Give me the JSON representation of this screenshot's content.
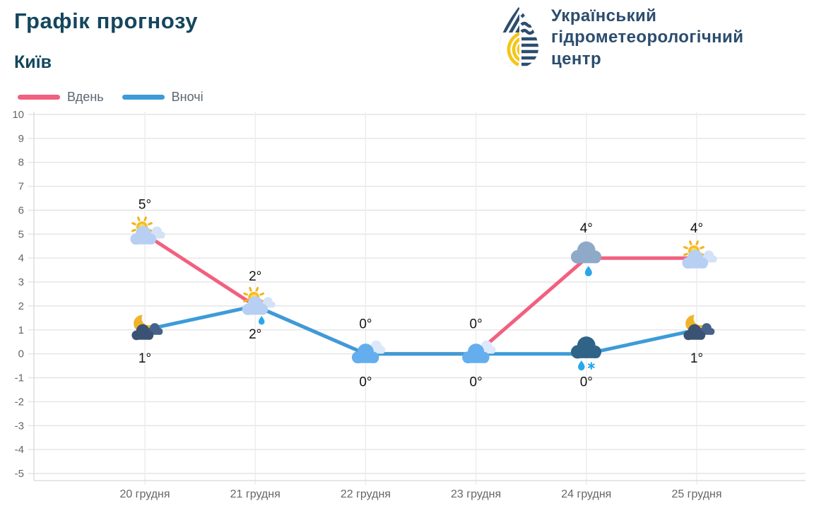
{
  "header": {
    "title": "Графік прогнозу",
    "city": "Київ"
  },
  "logo": {
    "org_line1": "Український",
    "org_line2": "гідрометеорологічний",
    "org_line3": "центр",
    "navy": "#2C4D6E",
    "yellow": "#F5C518"
  },
  "legend": [
    {
      "label": "Вдень",
      "color": "#F2607F"
    },
    {
      "label": "Вночі",
      "color": "#3D9BD9"
    }
  ],
  "chart_data": {
    "type": "line",
    "title": "Графік прогнозу",
    "xlabel": "",
    "ylabel": "",
    "categories": [
      "20 грудня",
      "21 грудня",
      "22 грудня",
      "23 грудня",
      "24 грудня",
      "25 грудня"
    ],
    "series": [
      {
        "name": "Вдень",
        "color": "#F2607F",
        "values": [
          5,
          2,
          0,
          0,
          4,
          4
        ],
        "labels": [
          "5°",
          "2°",
          "0°",
          "0°",
          "4°",
          "4°"
        ],
        "icons": [
          "sun-cloud",
          "sun-cloud-drizzle",
          "cloud",
          "cloud",
          "cloud-rain",
          "sun-cloud"
        ]
      },
      {
        "name": "Вночі",
        "color": "#3D9BD9",
        "values": [
          1,
          2,
          0,
          0,
          0,
          1
        ],
        "labels": [
          "1°",
          "2°",
          "0°",
          "0°",
          "0°",
          "1°"
        ],
        "icons": [
          "moon-cloud",
          null,
          null,
          null,
          "cloud-rain-snow",
          "moon-cloud"
        ]
      }
    ],
    "ylim": [
      -5,
      10
    ],
    "ytick_step": 1,
    "grid": true,
    "legend_position": "top-left"
  }
}
